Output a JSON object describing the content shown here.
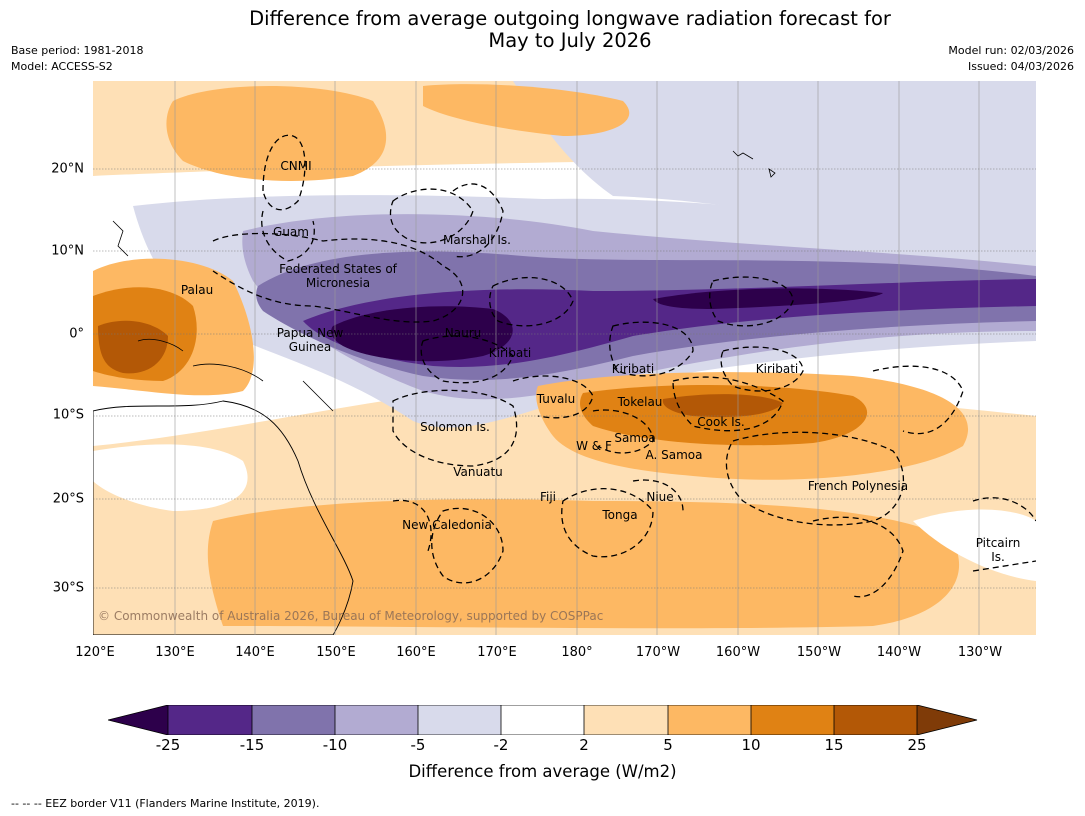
{
  "title": {
    "line1": "Difference from average outgoing longwave radiation forecast for",
    "line2": "May to July 2026"
  },
  "meta": {
    "base_period": "Base period: 1981-2018",
    "model": "Model: ACCESS-S2",
    "model_run": "Model run: 02/03/2026",
    "issued": "Issued: 04/03/2026"
  },
  "axes": {
    "lon_ticks": [
      "120°E",
      "130°E",
      "140°E",
      "150°E",
      "160°E",
      "170°E",
      "180°",
      "170°W",
      "160°W",
      "150°W",
      "140°W",
      "130°W"
    ],
    "lat_ticks": [
      "20°N",
      "10°N",
      "0°",
      "10°S",
      "20°S",
      "30°S"
    ]
  },
  "regions": [
    "CNMI",
    "Guam",
    "Marshall Is.",
    "Federated States of Micronesia",
    "Palau",
    "Papua New Guinea",
    "Nauru",
    "Kiribati",
    "Kiribati",
    "Kiribati",
    "Tuvalu",
    "Tokelau",
    "Cook Is.",
    "Solomon Is.",
    "Samoa",
    "W & F",
    "A. Samoa",
    "Vanuatu",
    "Fiji",
    "Niue",
    "French Polynesia",
    "Tonga",
    "New Caledonia",
    "Pitcairn Is."
  ],
  "copyright": "© Commonwealth of Australia 2026, Bureau of Meteorology, supported by COSPPac",
  "colorbar": {
    "ticks": [
      "-25",
      "-15",
      "-10",
      "-5",
      "-2",
      "2",
      "5",
      "10",
      "15",
      "25"
    ],
    "colors": [
      "#2d004b",
      "#542788",
      "#8073ac",
      "#b2abd2",
      "#d8daeb",
      "#ffffff",
      "#fee0b6",
      "#fdb863",
      "#e08214",
      "#b35806",
      "#7f3b08"
    ],
    "label": "Difference from average (W/m2)"
  },
  "footnote": "-- -- -- EEZ border V11 (Flanders Marine Institute, 2019)."
}
